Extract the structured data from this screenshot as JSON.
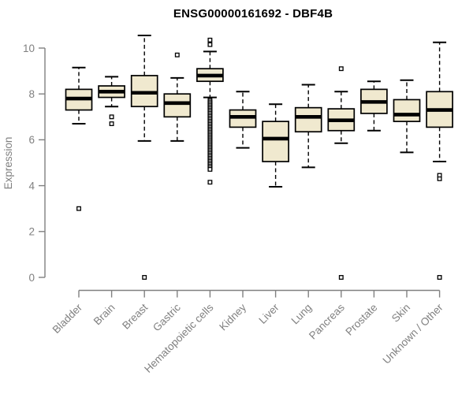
{
  "title": "ENSG00000161692 - DBF4B",
  "colors": {
    "background": "#ffffff",
    "axis": "#808080",
    "tick_label": "#808080",
    "box_fill": "#f0e9cf",
    "box_stroke": "#000000",
    "median": "#000000",
    "outlier_stroke": "#000000",
    "title": "#000000"
  },
  "chart_data": {
    "type": "boxplot",
    "title": "ENSG00000161692 - DBF4B",
    "xlabel": "",
    "ylabel": "Expression",
    "ylim": [
      0,
      10
    ],
    "yticks": [
      0,
      2,
      4,
      6,
      8,
      10
    ],
    "grid": false,
    "legend": null,
    "x_tick_rotation_deg": 45,
    "categories": [
      "Bladder",
      "Brain",
      "Breast",
      "Gastric",
      "Hematopoietic cells",
      "Kidney",
      "Liver",
      "Lung",
      "Pancreas",
      "Prostate",
      "Skin",
      "Unknown / Other"
    ],
    "series": [
      {
        "name": "Bladder",
        "whisker_low": 6.7,
        "q1": 7.3,
        "median": 7.8,
        "q3": 8.2,
        "whisker_high": 9.15,
        "outliers": [
          3.0
        ]
      },
      {
        "name": "Brain",
        "whisker_low": 7.45,
        "q1": 7.85,
        "median": 8.1,
        "q3": 8.35,
        "whisker_high": 8.75,
        "outliers": [
          7.0,
          6.7
        ]
      },
      {
        "name": "Breast",
        "whisker_low": 5.95,
        "q1": 7.45,
        "median": 8.05,
        "q3": 8.8,
        "whisker_high": 10.55,
        "outliers": [
          0
        ]
      },
      {
        "name": "Gastric",
        "whisker_low": 5.95,
        "q1": 7.0,
        "median": 7.6,
        "q3": 8.0,
        "whisker_high": 8.7,
        "outliers": [
          9.7
        ]
      },
      {
        "name": "Hematopoietic cells",
        "whisker_low": 7.85,
        "q1": 8.55,
        "median": 8.8,
        "q3": 9.1,
        "whisker_high": 9.85,
        "outliers": [
          10.35,
          10.15,
          7.72,
          7.65,
          7.58,
          7.51,
          7.44,
          7.37,
          7.3,
          7.23,
          7.16,
          7.09,
          7.02,
          6.95,
          6.88,
          6.81,
          6.74,
          6.67,
          6.6,
          6.53,
          6.46,
          6.39,
          6.32,
          6.25,
          6.18,
          6.11,
          6.04,
          5.97,
          5.9,
          5.83,
          5.76,
          5.69,
          5.62,
          5.55,
          5.48,
          5.41,
          5.34,
          5.27,
          5.2,
          5.13,
          5.06,
          4.99,
          4.92,
          4.85,
          4.78,
          4.71,
          4.15
        ]
      },
      {
        "name": "Kidney",
        "whisker_low": 5.65,
        "q1": 6.55,
        "median": 7.0,
        "q3": 7.3,
        "whisker_high": 8.1,
        "outliers": []
      },
      {
        "name": "Liver",
        "whisker_low": 3.95,
        "q1": 5.05,
        "median": 6.05,
        "q3": 6.8,
        "whisker_high": 7.55,
        "outliers": []
      },
      {
        "name": "Lung",
        "whisker_low": 4.8,
        "q1": 6.35,
        "median": 7.0,
        "q3": 7.4,
        "whisker_high": 8.4,
        "outliers": []
      },
      {
        "name": "Pancreas",
        "whisker_low": 5.85,
        "q1": 6.4,
        "median": 6.85,
        "q3": 7.35,
        "whisker_high": 8.1,
        "outliers": [
          9.1,
          0
        ]
      },
      {
        "name": "Prostate",
        "whisker_low": 6.4,
        "q1": 7.15,
        "median": 7.65,
        "q3": 8.2,
        "whisker_high": 8.55,
        "outliers": []
      },
      {
        "name": "Skin",
        "whisker_low": 5.45,
        "q1": 6.8,
        "median": 7.1,
        "q3": 7.75,
        "whisker_high": 8.6,
        "outliers": []
      },
      {
        "name": "Unknown / Other",
        "whisker_low": 5.05,
        "q1": 6.55,
        "median": 7.3,
        "q3": 8.1,
        "whisker_high": 10.25,
        "outliers": [
          4.45,
          4.3,
          0
        ]
      }
    ]
  }
}
